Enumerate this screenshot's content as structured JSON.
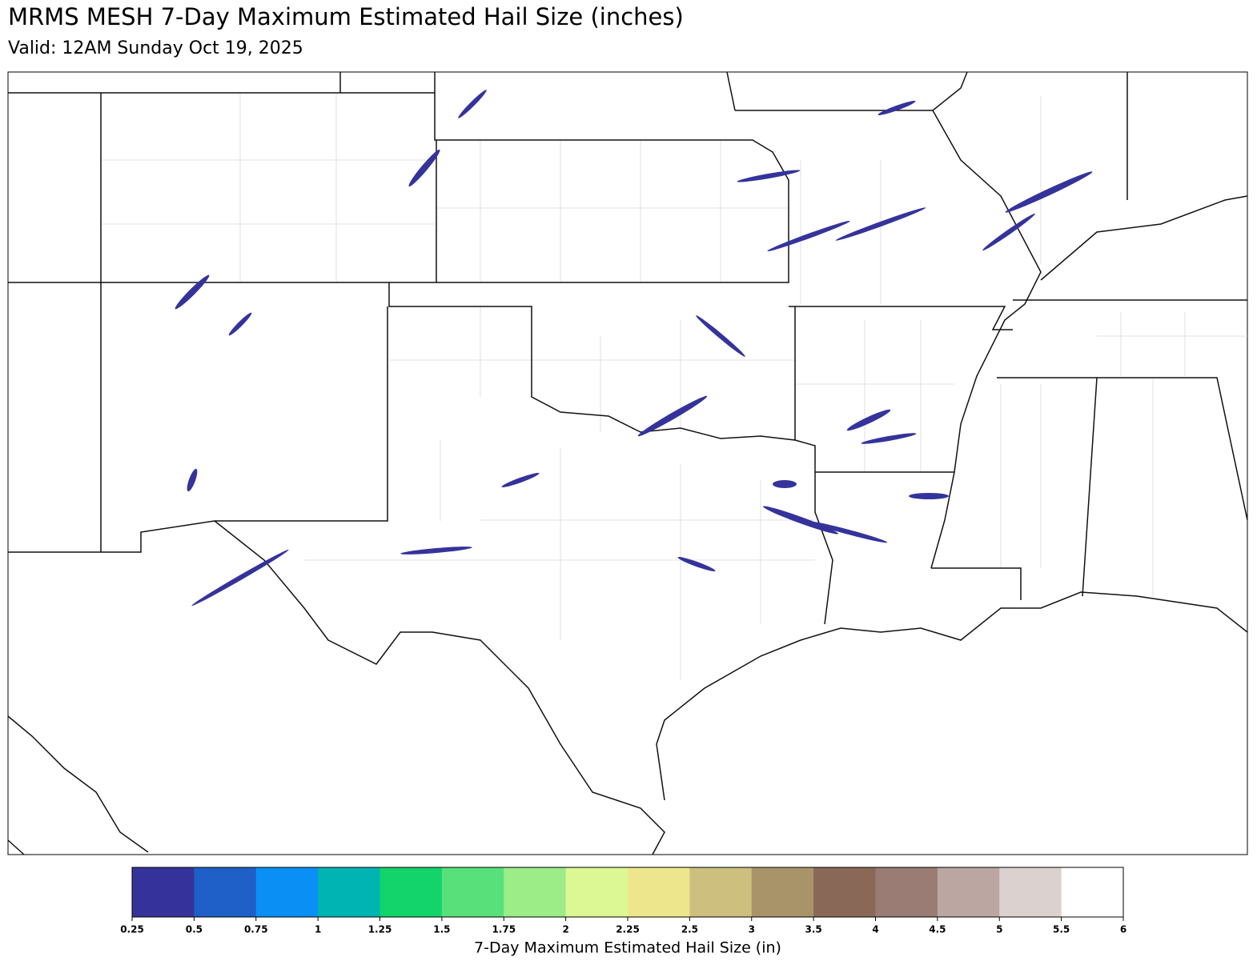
{
  "header": {
    "title": "MRMS MESH 7-Day Maximum Estimated Hail Size (inches)",
    "subtitle": "Valid: 12AM Sunday Oct 19, 2025"
  },
  "colorbar": {
    "label": "7-Day Maximum Estimated Hail Size (in)",
    "ticks": [
      0.25,
      0.5,
      0.75,
      1,
      1.25,
      1.5,
      1.75,
      2,
      2.25,
      2.5,
      3,
      3.5,
      4,
      4.5,
      5,
      5.5,
      6
    ],
    "colors": [
      "#35339b",
      "#1e5fc8",
      "#0a8ff5",
      "#00b4b4",
      "#12d46a",
      "#58e07a",
      "#9cec88",
      "#dcf895",
      "#eee68d",
      "#cdbf7e",
      "#a99369",
      "#8a6858",
      "#9a7c74",
      "#bba6a2",
      "#dbd2d0",
      "#ffffff"
    ]
  }
}
